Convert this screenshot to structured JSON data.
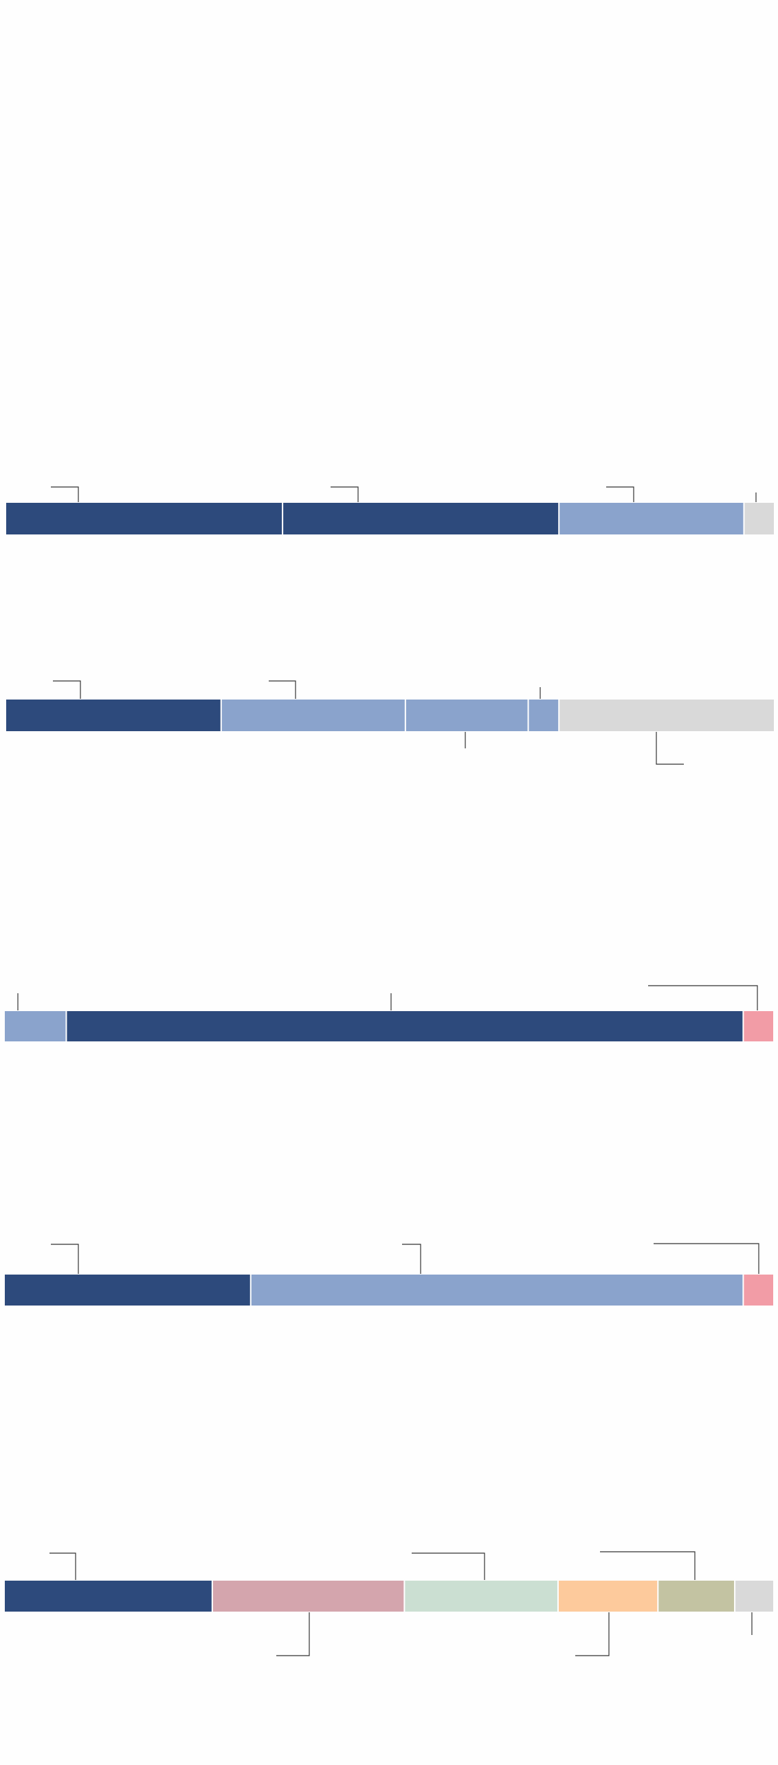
{
  "colors": {
    "dark_blue": "#2d4a7c",
    "light_blue": "#8aa3cc",
    "gray": "#d9d9d9",
    "pink": "#f29ca6",
    "mauve": "#d4a5ad",
    "mint": "#cbdfd2",
    "peach": "#fdca9c",
    "olive": "#c3c3a2",
    "leader": "#333333"
  },
  "chart_data": [
    {
      "type": "bar",
      "orientation": "horizontal-stacked",
      "segments": [
        {
          "value": 36.0,
          "color": "#2d4a7c"
        },
        {
          "value": 36.0,
          "color": "#2d4a7c"
        },
        {
          "value": 24.1,
          "color": "#8aa3cc"
        },
        {
          "value": 3.9,
          "color": "#d9d9d9"
        }
      ]
    },
    {
      "type": "bar",
      "orientation": "horizontal-stacked",
      "segments": [
        {
          "value": 28.0,
          "color": "#2d4a7c"
        },
        {
          "value": 24.0,
          "color": "#8aa3cc"
        },
        {
          "value": 16.0,
          "color": "#8aa3cc"
        },
        {
          "value": 4.0,
          "color": "#8aa3cc"
        },
        {
          "value": 28.0,
          "color": "#d9d9d9"
        }
      ]
    },
    {
      "type": "bar",
      "orientation": "horizontal-stacked",
      "segments": [
        {
          "value": 8.0,
          "color": "#8aa3cc"
        },
        {
          "value": 88.1,
          "color": "#2d4a7c"
        },
        {
          "value": 3.9,
          "color": "#f29ca6"
        }
      ]
    },
    {
      "type": "bar",
      "orientation": "horizontal-stacked",
      "segments": [
        {
          "value": 32.0,
          "color": "#2d4a7c"
        },
        {
          "value": 64.1,
          "color": "#8aa3cc"
        },
        {
          "value": 3.9,
          "color": "#f29ca6"
        }
      ]
    },
    {
      "type": "bar",
      "orientation": "horizontal-stacked",
      "segments": [
        {
          "value": 27.0,
          "color": "#2d4a7c"
        },
        {
          "value": 25.0,
          "color": "#d4a5ad"
        },
        {
          "value": 20.0,
          "color": "#cbdfd2"
        },
        {
          "value": 13.0,
          "color": "#fdca9c"
        },
        {
          "value": 10.0,
          "color": "#c3c3a2"
        },
        {
          "value": 5.0,
          "color": "#d9d9d9"
        }
      ]
    }
  ]
}
